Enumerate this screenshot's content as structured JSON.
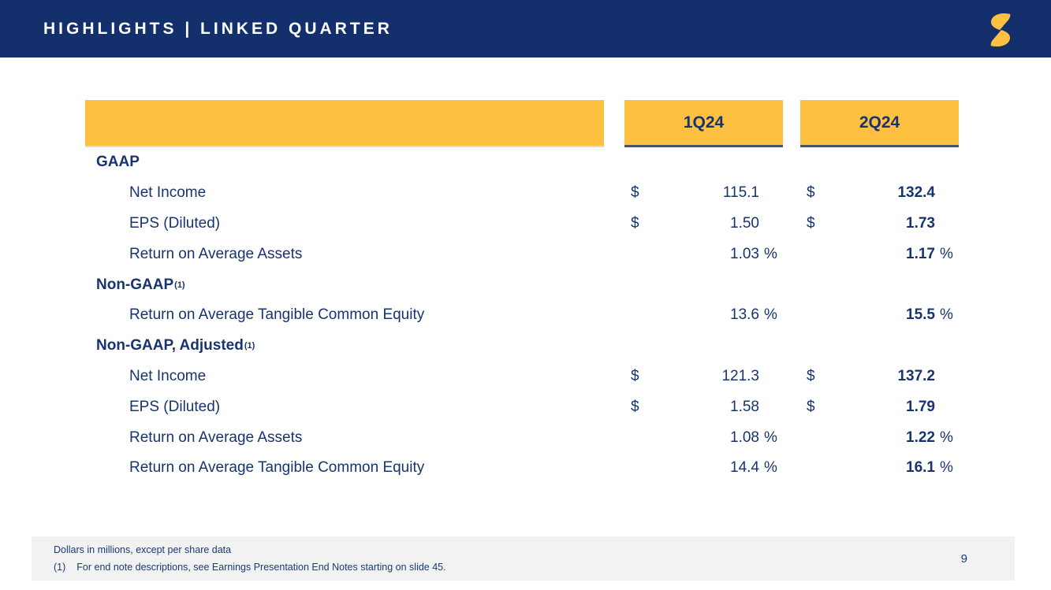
{
  "header": {
    "title": "HIGHLIGHTS | LINKED QUARTER",
    "logo_icon": "gold-s-logo"
  },
  "table": {
    "columns": [
      "1Q24",
      "2Q24"
    ],
    "sections": [
      {
        "label": "GAAP",
        "superscript": "",
        "rows": [
          {
            "label": "Net Income",
            "prefix": "$",
            "values": [
              "115.1",
              "132.4"
            ],
            "suffix": ""
          },
          {
            "label": "EPS (Diluted)",
            "prefix": "$",
            "values": [
              "1.50",
              "1.73"
            ],
            "suffix": ""
          },
          {
            "label": "Return on Average Assets",
            "prefix": "",
            "values": [
              "1.03",
              "1.17"
            ],
            "suffix": "%"
          }
        ]
      },
      {
        "label": "Non-GAAP",
        "superscript": "(1)",
        "rows": [
          {
            "label": "Return on Average Tangible Common Equity",
            "prefix": "",
            "values": [
              "13.6",
              "15.5"
            ],
            "suffix": "%"
          }
        ]
      },
      {
        "label": "Non-GAAP, Adjusted",
        "superscript": "(1)",
        "rows": [
          {
            "label": "Net Income",
            "prefix": "$",
            "values": [
              "121.3",
              "137.2"
            ],
            "suffix": ""
          },
          {
            "label": "EPS (Diluted)",
            "prefix": "$",
            "values": [
              "1.58",
              "1.79"
            ],
            "suffix": ""
          },
          {
            "label": "Return on Average Assets",
            "prefix": "",
            "values": [
              "1.08",
              "1.22"
            ],
            "suffix": "%"
          },
          {
            "label": "Return on Average Tangible Common Equity",
            "prefix": "",
            "values": [
              "14.4",
              "16.1"
            ],
            "suffix": "%"
          }
        ]
      }
    ]
  },
  "footer": {
    "units_note": "Dollars in millions, except per share data",
    "endnote_number": "(1)",
    "endnote_text": "For end note descriptions, see Earnings Presentation End Notes starting on slide 45.",
    "page_number": "9"
  },
  "colors": {
    "header_bg": "#13306d",
    "accent_yellow": "#fdc040",
    "text_navy": "#17346e",
    "quarter_underline": "#44546a",
    "footer_bg": "#f2f2f3"
  }
}
